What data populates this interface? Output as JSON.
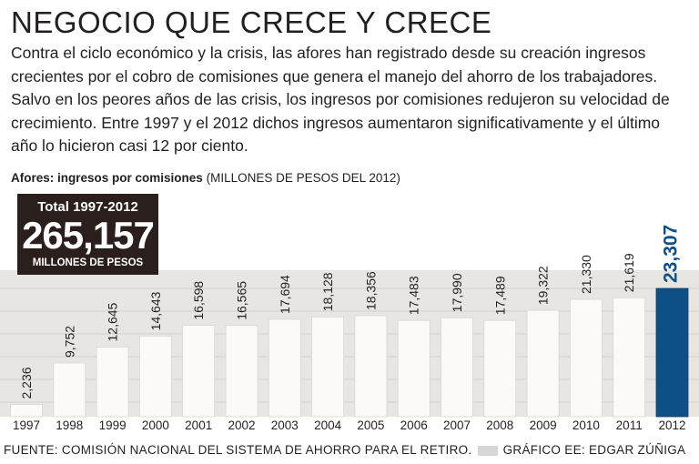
{
  "title": "NEGOCIO QUE CRECE Y CRECE",
  "intro": "Contra el ciclo económico y la crisis, las afores han registrado desde su creación ingresos crecientes por el cobro de comisiones que genera el manejo del ahorro de los trabajadores. Salvo en los peores años de las crisis, los ingresos por comisiones redujeron su velocidad de crecimiento. Entre 1997 y el 2012 dichos ingresos aumentaron significativamente y el último año lo hicieron casi 12 por ciento.",
  "subtitle_bold": "Afores: ingresos por comisiones",
  "subtitle_unit": "(MILLONES DE PESOS DEL 2012)",
  "total_box": {
    "label": "Total 1997-2012",
    "value": "265,157",
    "unit": "MILLONES DE PESOS"
  },
  "footer": {
    "source": "FUENTE: COMISIÓN NACIONAL DEL SISTEMA DE AHORRO PARA EL RETIRO.",
    "credit": "GRÁFICO EE: EDGAR ZÚÑIGA"
  },
  "colors": {
    "bar": "#fbfaf8",
    "highlight_bar": "#0e4f86",
    "chart_background": "#e8e6e3",
    "text": "#231f20"
  },
  "chart_data": {
    "type": "bar",
    "categories": [
      "1997",
      "1998",
      "1999",
      "2000",
      "2001",
      "2002",
      "2003",
      "2004",
      "2005",
      "2006",
      "2007",
      "2008",
      "2009",
      "2010",
      "2011",
      "2012"
    ],
    "values": [
      2236,
      9752,
      12645,
      14643,
      16598,
      16565,
      17694,
      18128,
      18356,
      17483,
      17990,
      17489,
      19322,
      21330,
      21619,
      23307
    ],
    "labels": [
      "2,236",
      "9,752",
      "12,645",
      "14,643",
      "16,598",
      "16,565",
      "17,694",
      "18,128",
      "18,356",
      "17,483",
      "17,990",
      "17,489",
      "19,322",
      "21,330",
      "21,619",
      "23,307"
    ],
    "highlight": "2012",
    "title": "Afores: ingresos por comisiones",
    "ylabel": "(MILLONES DE PESOS DEL 2012)",
    "xlabel": "",
    "ylim": [
      0,
      26000
    ],
    "grid": true
  }
}
